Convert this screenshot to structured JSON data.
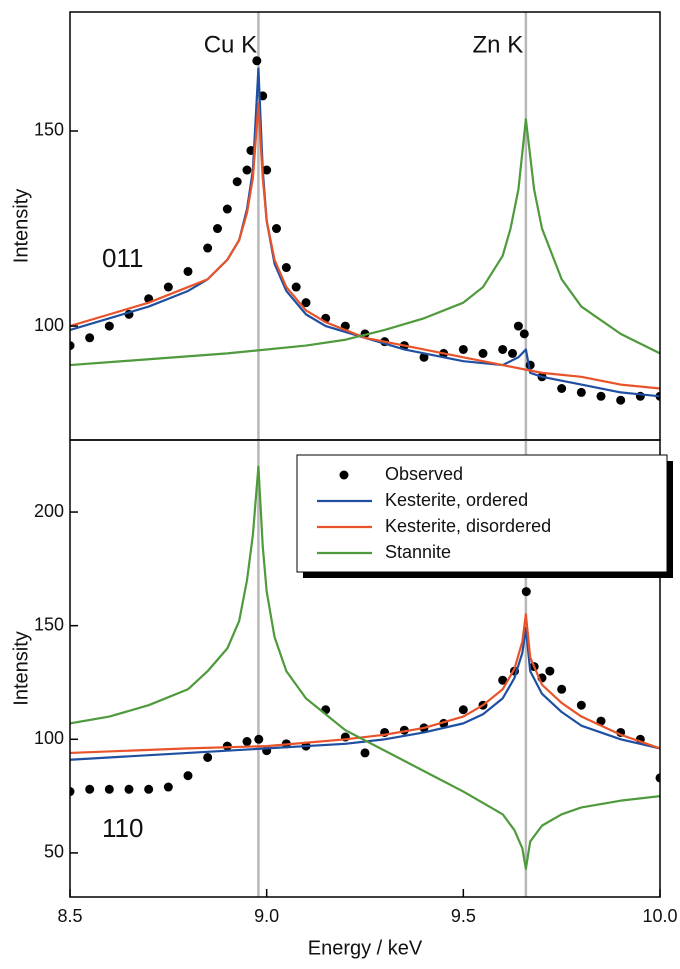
{
  "chart_data": [
    {
      "type": "line",
      "ylabel": "Intensity",
      "annotation": "011",
      "xlim": [
        8.5,
        10.0
      ],
      "ylim": [
        70.8,
        180.5
      ],
      "yticks": [
        100,
        150
      ],
      "vlines": [
        {
          "x": 8.979,
          "label": "Cu K"
        },
        {
          "x": 9.659,
          "label": "Zn K"
        }
      ],
      "series": [
        {
          "kind": "scatter",
          "color": "#000000",
          "x": [
            8.5,
            8.55,
            8.6,
            8.65,
            8.7,
            8.75,
            8.8,
            8.85,
            8.875,
            8.9,
            8.925,
            8.95,
            8.96,
            8.975,
            8.99,
            9.0,
            9.025,
            9.05,
            9.075,
            9.1,
            9.15,
            9.2,
            9.25,
            9.3,
            9.35,
            9.4,
            9.45,
            9.5,
            9.55,
            9.6,
            9.625,
            9.64,
            9.655,
            9.67,
            9.7,
            9.75,
            9.8,
            9.85,
            9.9,
            9.95,
            10.0
          ],
          "values": [
            95,
            97,
            100,
            103,
            107,
            110,
            114,
            120,
            125,
            130,
            137,
            140,
            145,
            168,
            159,
            140,
            125,
            115,
            110,
            106,
            102,
            100,
            98,
            96,
            95,
            92,
            93,
            94,
            93,
            94,
            93,
            100,
            98,
            90,
            87,
            84,
            83,
            82,
            81,
            82,
            82
          ]
        },
        {
          "kind": "line",
          "color": "#1f4fa0",
          "x": [
            8.5,
            8.6,
            8.7,
            8.8,
            8.85,
            8.9,
            8.93,
            8.95,
            8.965,
            8.979,
            8.99,
            9.0,
            9.02,
            9.05,
            9.1,
            9.15,
            9.25,
            9.35,
            9.5,
            9.6,
            9.64,
            9.659,
            9.67,
            9.7,
            9.8,
            9.9,
            10.0
          ],
          "values": [
            99,
            102,
            105,
            109,
            112,
            117,
            122,
            130,
            140,
            166,
            140,
            127,
            116,
            109,
            103,
            100,
            97,
            94,
            91,
            90,
            92,
            94,
            88,
            87,
            85,
            83,
            82
          ]
        },
        {
          "kind": "line",
          "color": "#e8532a",
          "x": [
            8.5,
            8.6,
            8.7,
            8.8,
            8.85,
            8.9,
            8.93,
            8.95,
            8.965,
            8.979,
            8.99,
            9.0,
            9.02,
            9.05,
            9.1,
            9.15,
            9.25,
            9.35,
            9.5,
            9.6,
            9.7,
            9.8,
            9.9,
            10.0
          ],
          "values": [
            100,
            103,
            106,
            110,
            112,
            117,
            122,
            129,
            138,
            157,
            138,
            127,
            117,
            110,
            104,
            101,
            97,
            95,
            92,
            90,
            88,
            87,
            85,
            84
          ]
        },
        {
          "kind": "line",
          "color": "#4e9a3c",
          "x": [
            8.5,
            8.7,
            8.9,
            9.1,
            9.2,
            9.3,
            9.4,
            9.5,
            9.55,
            9.6,
            9.62,
            9.64,
            9.659,
            9.68,
            9.7,
            9.75,
            9.8,
            9.9,
            10.0
          ],
          "values": [
            90,
            91.5,
            93,
            95,
            96.5,
            99,
            102,
            106,
            110,
            118,
            125,
            135,
            153,
            135,
            125,
            112,
            105,
            98,
            93
          ]
        }
      ]
    },
    {
      "type": "line",
      "ylabel": "Intensity",
      "xlabel": "Energy / keV",
      "annotation": "110",
      "xlim": [
        8.5,
        10.0
      ],
      "ylim": [
        30.6,
        231.7
      ],
      "xticks": [
        8.5,
        {
          "value": 9.0,
          "label": "9.0"
        },
        {
          "value": 9.5,
          "label": "9.5"
        },
        {
          "value": 10.0,
          "label": "10.0"
        }
      ],
      "yticks": [
        50,
        100,
        150,
        200
      ],
      "vlines": [
        {
          "x": 8.979
        },
        {
          "x": 9.659
        }
      ],
      "legend": "upper center",
      "series": [
        {
          "name": "Observed",
          "kind": "scatter",
          "color": "#000000",
          "x": [
            8.5,
            8.55,
            8.6,
            8.65,
            8.7,
            8.75,
            8.8,
            8.85,
            8.9,
            8.95,
            8.98,
            9.0,
            9.05,
            9.1,
            9.15,
            9.2,
            9.25,
            9.3,
            9.35,
            9.4,
            9.45,
            9.5,
            9.55,
            9.6,
            9.63,
            9.66,
            9.68,
            9.7,
            9.72,
            9.75,
            9.8,
            9.85,
            9.9,
            9.95,
            10.0
          ],
          "values": [
            77,
            78,
            78,
            78,
            78,
            79,
            84,
            92,
            97,
            99,
            100,
            95,
            98,
            97,
            113,
            101,
            94,
            103,
            104,
            105,
            107,
            113,
            115,
            126,
            130,
            165,
            132,
            127,
            130,
            122,
            115,
            108,
            103,
            100,
            83
          ]
        },
        {
          "name": "Kesterite, ordered",
          "kind": "line",
          "color": "#1f4fa0",
          "x": [
            8.5,
            8.8,
            9.0,
            9.2,
            9.3,
            9.4,
            9.5,
            9.55,
            9.6,
            9.63,
            9.65,
            9.659,
            9.67,
            9.7,
            9.75,
            9.8,
            9.9,
            10.0
          ],
          "values": [
            91,
            94,
            96,
            98,
            100,
            103,
            107,
            111,
            118,
            127,
            138,
            149,
            130,
            120,
            112,
            106,
            100,
            96
          ]
        },
        {
          "name": "Kesterite, disordered",
          "kind": "line",
          "color": "#e8532a",
          "x": [
            8.5,
            8.8,
            9.0,
            9.2,
            9.3,
            9.4,
            9.5,
            9.55,
            9.6,
            9.63,
            9.65,
            9.659,
            9.67,
            9.7,
            9.75,
            9.8,
            9.9,
            10.0
          ],
          "values": [
            94,
            96,
            97,
            100,
            102,
            105,
            110,
            115,
            122,
            131,
            143,
            155,
            136,
            124,
            116,
            110,
            102,
            96
          ]
        },
        {
          "name": "Stannite",
          "kind": "line",
          "color": "#4e9a3c",
          "x": [
            8.5,
            8.6,
            8.7,
            8.8,
            8.85,
            8.9,
            8.93,
            8.95,
            8.965,
            8.979,
            8.99,
            9.0,
            9.02,
            9.05,
            9.1,
            9.2,
            9.3,
            9.4,
            9.5,
            9.6,
            9.63,
            9.65,
            9.659,
            9.67,
            9.7,
            9.75,
            9.8,
            9.9,
            10.0
          ],
          "values": [
            107,
            110,
            115,
            122,
            130,
            140,
            152,
            170,
            190,
            220,
            185,
            165,
            145,
            130,
            118,
            104,
            95,
            86,
            77,
            67,
            60,
            52,
            43,
            55,
            62,
            67,
            70,
            73,
            75
          ]
        }
      ]
    }
  ]
}
